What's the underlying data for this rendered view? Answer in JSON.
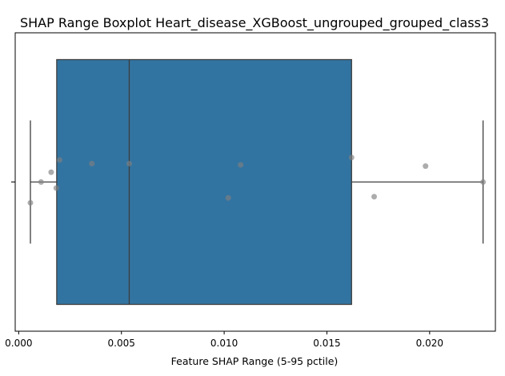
{
  "chart_data": {
    "type": "boxplot",
    "title": "SHAP Range Boxplot Heart_disease_XGBoost_ungrouped_grouped_class3",
    "xlabel": "Feature SHAP Range (5-95 pctile)",
    "ylabel": "",
    "xlim": [
      -0.00017,
      0.0232
    ],
    "x_ticks": [
      0.0,
      0.005,
      0.01,
      0.015,
      0.02
    ],
    "x_tick_labels": [
      "0.000",
      "0.005",
      "0.010",
      "0.015",
      "0.020"
    ],
    "grid": false,
    "box": {
      "whisker_low": 0.00057,
      "q1": 0.00185,
      "median": 0.00538,
      "q3": 0.0162,
      "whisker_high": 0.0226,
      "color": "#3274a1",
      "edge_color": "#3d3d3d"
    },
    "points": [
      {
        "x": 0.00057,
        "jitter": -0.17
      },
      {
        "x": 0.00109,
        "jitter": 0.0
      },
      {
        "x": 0.00158,
        "jitter": 0.08
      },
      {
        "x": 0.00183,
        "jitter": -0.05
      },
      {
        "x": 0.00199,
        "jitter": 0.18
      },
      {
        "x": 0.00356,
        "jitter": 0.15
      },
      {
        "x": 0.00538,
        "jitter": 0.15
      },
      {
        "x": 0.0102,
        "jitter": -0.13
      },
      {
        "x": 0.0108,
        "jitter": 0.14
      },
      {
        "x": 0.0162,
        "jitter": 0.2
      },
      {
        "x": 0.0173,
        "jitter": -0.12
      },
      {
        "x": 0.0198,
        "jitter": 0.13
      },
      {
        "x": 0.0226,
        "jitter": 0.0
      }
    ],
    "point_color": "#808080"
  }
}
